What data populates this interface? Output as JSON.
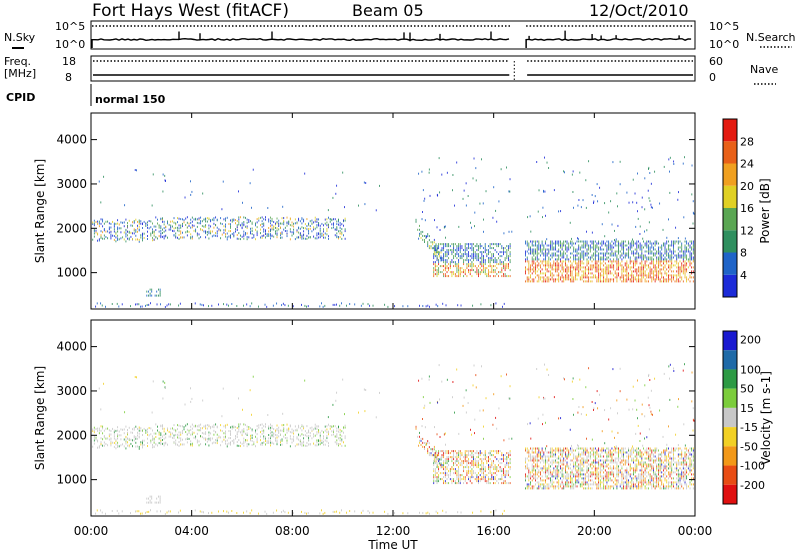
{
  "header": {
    "station": "Fort Hays West (fitACF)",
    "beam": "Beam 05",
    "date": "12/Oct/2010"
  },
  "status": {
    "nsky_label": "N.Sky",
    "nsearch_label": "N.Search",
    "freq_label": "Freq.",
    "freq_unit": "[MHz]",
    "nave_label": "Nave",
    "cpid_label": "CPID",
    "cpid_value": "normal 150",
    "noise_ticks_left": [
      "10^5",
      "10^0"
    ],
    "noise_ticks_right": [
      "10^5",
      "10^0"
    ],
    "freq_ticks_left": [
      "18",
      "8"
    ],
    "nave_ticks_right": [
      "60",
      "0"
    ]
  },
  "colors": {
    "low_noise_line": "#000000",
    "background": "#ffffff"
  },
  "chart_data": [
    {
      "type": "heatmap",
      "name": "power-panel",
      "ylabel": "Slant Range [km]",
      "yticks": [
        "1000",
        "2000",
        "3000",
        "4000"
      ],
      "ylim": [
        180,
        4600
      ],
      "xlim": [
        0,
        24
      ],
      "colorbar": {
        "label": "Power [dB]",
        "ticks": [
          "4",
          "8",
          "12",
          "16",
          "20",
          "24",
          "28"
        ],
        "colors": [
          "#1c2bd8",
          "#1f64c8",
          "#2f8f5f",
          "#5aa653",
          "#e0d024",
          "#f0a020",
          "#e86018",
          "#e41a10"
        ]
      }
    },
    {
      "type": "heatmap",
      "name": "velocity-panel",
      "ylabel": "Slant Range [km]",
      "yticks": [
        "1000",
        "2000",
        "3000",
        "4000"
      ],
      "ylim": [
        180,
        4600
      ],
      "xlim": [
        0,
        24
      ],
      "colorbar": {
        "label": "Velocity [m s-1]",
        "ticks": [
          "200",
          "100",
          "50",
          "15",
          "-15",
          "-50",
          "-100",
          "-200"
        ],
        "colors": [
          "#1a1ad0",
          "#1f6aa8",
          "#2d9a44",
          "#7ccd3c",
          "#c8c8c8",
          "#f2d024",
          "#f29818",
          "#e84c14",
          "#e01010"
        ]
      }
    }
  ],
  "xaxis": {
    "ticks": [
      "00:00",
      "04:00",
      "08:00",
      "12:00",
      "16:00",
      "20:00",
      "00:00"
    ],
    "label": "Time UT"
  }
}
